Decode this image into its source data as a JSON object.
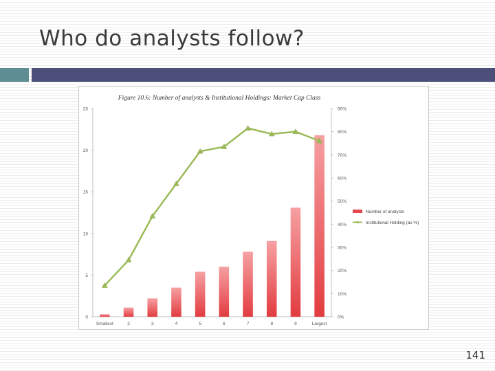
{
  "slide": {
    "title": "Who do analysts follow?",
    "page_number": "141"
  },
  "colors": {
    "accent_teal": "#5e8e93",
    "accent_navy": "#4b4f7a",
    "bar_color": "#e8484c",
    "line_color": "#9bbb59"
  },
  "chart_data": {
    "type": "bar",
    "title": "Figure 10.6: Number of analysts & Institutional Holdings: Market Cap Class",
    "xlabel": "",
    "categories": [
      "Smallest",
      "2",
      "3",
      "4",
      "5",
      "6",
      "7",
      "8",
      "9",
      "Largest"
    ],
    "y_left": {
      "label": "",
      "ylim": [
        0,
        25
      ],
      "ticks": [
        "0",
        "5",
        "10",
        "15",
        "20",
        "25"
      ]
    },
    "y_right": {
      "label": "",
      "ylim": [
        0,
        90
      ],
      "ticks": [
        "0%",
        "10%",
        "20%",
        "30%",
        "40%",
        "50%",
        "60%",
        "70%",
        "80%",
        "90%"
      ]
    },
    "series": [
      {
        "name": "Number of analysts",
        "type": "bar",
        "axis": "left",
        "values": [
          0.3,
          1.1,
          2.2,
          3.5,
          5.4,
          6.0,
          7.8,
          9.1,
          13.1,
          21.8
        ]
      },
      {
        "name": "Institutional Holding (as %)",
        "type": "line",
        "axis": "right",
        "values": [
          13.5,
          24.5,
          43.5,
          57.5,
          71.5,
          73.5,
          81.5,
          79.0,
          80.0,
          76.0
        ]
      }
    ],
    "legend_position": "right",
    "grid": false
  }
}
